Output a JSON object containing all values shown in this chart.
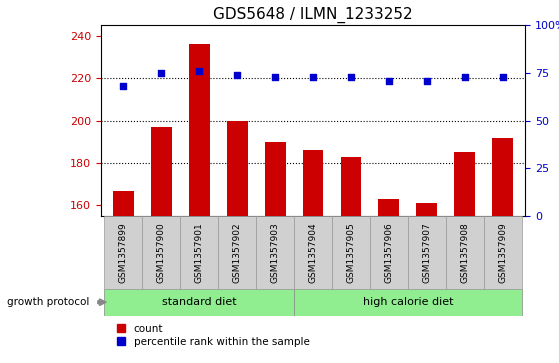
{
  "title": "GDS5648 / ILMN_1233252",
  "samples": [
    "GSM1357899",
    "GSM1357900",
    "GSM1357901",
    "GSM1357902",
    "GSM1357903",
    "GSM1357904",
    "GSM1357905",
    "GSM1357906",
    "GSM1357907",
    "GSM1357908",
    "GSM1357909"
  ],
  "counts": [
    167,
    197,
    236,
    200,
    190,
    186,
    183,
    163,
    161,
    185,
    192
  ],
  "percentiles": [
    68,
    75,
    76,
    74,
    73,
    73,
    73,
    71,
    71,
    73,
    73
  ],
  "ylim_left": [
    155,
    245
  ],
  "ylim_right": [
    0,
    100
  ],
  "yticks_left": [
    160,
    180,
    200,
    220,
    240
  ],
  "yticks_right": [
    0,
    25,
    50,
    75,
    100
  ],
  "bar_color": "#cc0000",
  "dot_color": "#0000cc",
  "grid_color": "#000000",
  "standard_diet_indices": [
    0,
    1,
    2,
    3,
    4
  ],
  "high_calorie_indices": [
    5,
    6,
    7,
    8,
    9,
    10
  ],
  "standard_diet_label": "standard diet",
  "high_calorie_label": "high calorie diet",
  "growth_protocol_label": "growth protocol",
  "legend_count_label": "count",
  "legend_percentile_label": "percentile rank within the sample",
  "group_band_color": "#90ee90",
  "gray_label_color": "#d0d0d0",
  "tick_label_color_left": "#cc0000",
  "tick_label_color_right": "#0000cc",
  "title_fontsize": 11,
  "axis_tick_fontsize": 8,
  "sample_label_fontsize": 6.5,
  "bar_width": 0.55,
  "fig_width": 5.59,
  "fig_height": 3.63
}
